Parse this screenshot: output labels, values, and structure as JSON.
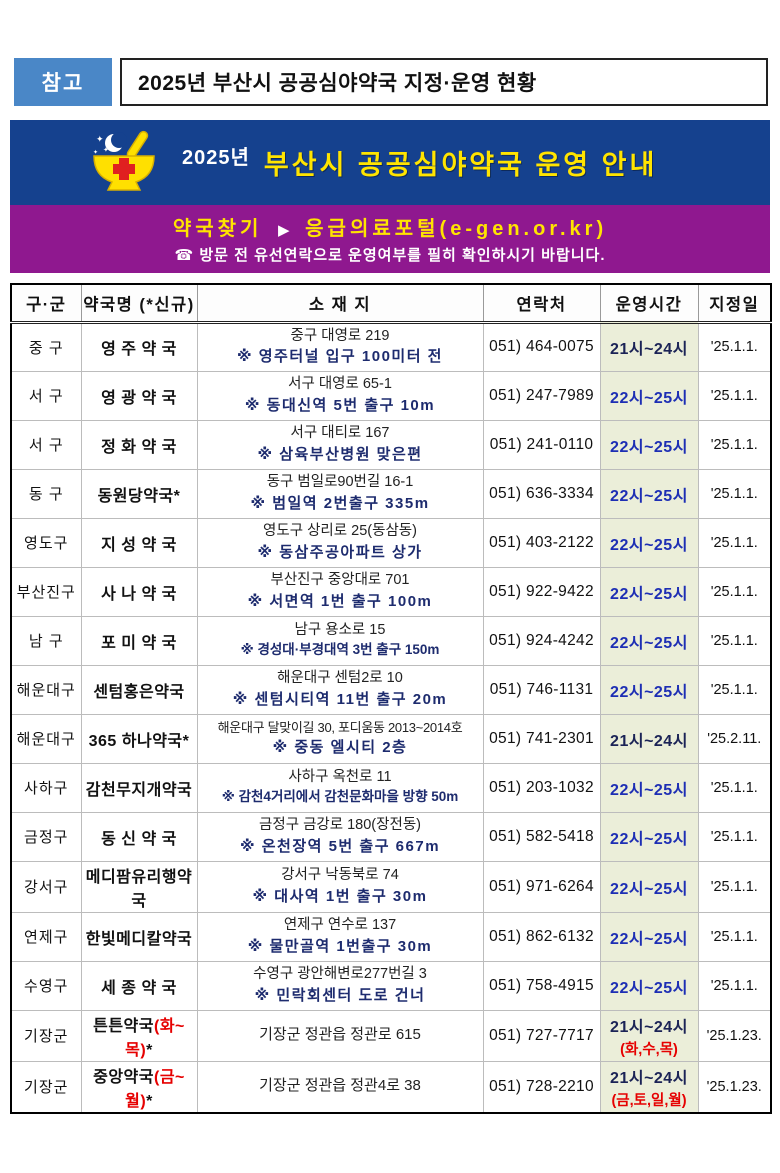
{
  "colors": {
    "badge_blue": "#4a87c7",
    "banner_blue": "#15418e",
    "banner_yellow": "#ffe400",
    "purple": "#8f188f",
    "hours_green": "#ebeed9",
    "time_blue": "#1d2eb4",
    "time_navy": "#1b2356",
    "accent_red": "#e60000",
    "note_navy": "#1d2b6e"
  },
  "page": {
    "ref_label": "참고",
    "title": "2025년 부산시 공공심야약국 지정·운영 현황"
  },
  "banner": {
    "icon": "pharmacy-mortar-icon",
    "year": "2025년",
    "title": "부산시 공공심야약국 운영 안내"
  },
  "finder": {
    "label": "약국찾기",
    "arrow": "▶",
    "portal": "응급의료포털(e-gen.or.kr)",
    "notice": "☎ 방문 전 유선연락으로 운영여부를 필히 확인하시기 바랍니다."
  },
  "table": {
    "headers": [
      "구·군",
      "약국명 (*신규)",
      "소 재 지",
      "연락처",
      "운영시간",
      "지정일"
    ],
    "rows": [
      {
        "district": "중 구",
        "name": "영 주 약 국",
        "addr": "중구 대영로 219",
        "addr_note": "※ 영주터널 입구 100미터 전",
        "phone": "051) 464-0075",
        "hours": "21시~24시",
        "hours_days": "",
        "date": "'25.1.1."
      },
      {
        "district": "서 구",
        "name": "영 광 약 국",
        "addr": "서구 대영로 65-1",
        "addr_note": "※ 동대신역 5번 출구 10m",
        "phone": "051) 247-7989",
        "hours": "22시~25시",
        "hours_days": "",
        "date": "'25.1.1."
      },
      {
        "district": "서 구",
        "name": "정 화 약 국",
        "addr": "서구 대티로 167",
        "addr_note": "※ 삼육부산병원 맞은편",
        "phone": "051) 241-0110",
        "hours": "22시~25시",
        "hours_days": "",
        "date": "'25.1.1."
      },
      {
        "district": "동 구",
        "name": "동원당약국*",
        "addr": "동구 범일로90번길 16-1",
        "addr_note": "※ 범일역 2번출구 335m",
        "phone": "051) 636-3334",
        "hours": "22시~25시",
        "hours_days": "",
        "date": "'25.1.1."
      },
      {
        "district": "영도구",
        "name": "지 성 약 국",
        "addr": "영도구 상리로 25(동삼동)",
        "addr_note": "※ 동삼주공아파트 상가",
        "phone": "051) 403-2122",
        "hours": "22시~25시",
        "hours_days": "",
        "date": "'25.1.1."
      },
      {
        "district": "부산진구",
        "name": "사 나 약 국",
        "addr": "부산진구 중앙대로 701",
        "addr_note": "※ 서면역 1번 출구 100m",
        "phone": "051) 922-9422",
        "hours": "22시~25시",
        "hours_days": "",
        "date": "'25.1.1."
      },
      {
        "district": "남 구",
        "name": "포 미 약 국",
        "addr": "남구 용소로 15",
        "addr_note": "※ 경성대·부경대역 3번 출구 150m",
        "phone": "051) 924-4242",
        "hours": "22시~25시",
        "hours_days": "",
        "date": "'25.1.1."
      },
      {
        "district": "해운대구",
        "name": "센텀홍은약국",
        "addr": "해운대구 센텀2로 10",
        "addr_note": "※ 센텀시티역 11번 출구 20m",
        "phone": "051) 746-1131",
        "hours": "22시~25시",
        "hours_days": "",
        "date": "'25.1.1."
      },
      {
        "district": "해운대구",
        "name": "365 하나약국*",
        "addr": "해운대구 달맞이길 30, 포디움동 2013~2014호",
        "addr_note": "※ 중동 엘시티 2층",
        "phone": "051) 741-2301",
        "hours": "21시~24시",
        "hours_days": "",
        "date": "'25.2.11."
      },
      {
        "district": "사하구",
        "name": "감천무지개약국",
        "addr": "사하구 옥천로 11",
        "addr_note": "※ 감천4거리에서 감천문화마을 방향 50m",
        "phone": "051) 203-1032",
        "hours": "22시~25시",
        "hours_days": "",
        "date": "'25.1.1."
      },
      {
        "district": "금정구",
        "name": "동 신 약 국",
        "addr": "금정구 금강로 180(장전동)",
        "addr_note": "※ 온천장역 5번 출구 667m",
        "phone": "051) 582-5418",
        "hours": "22시~25시",
        "hours_days": "",
        "date": "'25.1.1."
      },
      {
        "district": "강서구",
        "name": "메디팜유리행약국",
        "addr": "강서구 낙동북로 74",
        "addr_note": "※ 대사역 1번 출구 30m",
        "phone": "051) 971-6264",
        "hours": "22시~25시",
        "hours_days": "",
        "date": "'25.1.1."
      },
      {
        "district": "연제구",
        "name": "한빛메디칼약국",
        "addr": "연제구 연수로 137",
        "addr_note": "※ 물만골역 1번출구 30m",
        "phone": "051) 862-6132",
        "hours": "22시~25시",
        "hours_days": "",
        "date": "'25.1.1."
      },
      {
        "district": "수영구",
        "name": "세 종 약 국",
        "addr": "수영구 광안해변로277번길 3",
        "addr_note": "※ 민락회센터 도로 건너",
        "phone": "051) 758-4915",
        "hours": "22시~25시",
        "hours_days": "",
        "date": "'25.1.1."
      },
      {
        "district": "기장군",
        "name": "튼튼약국",
        "name_red": "(화~목)",
        "name_suffix": "*",
        "addr": "기장군 정관읍 정관로 615",
        "addr_note": "",
        "phone": "051) 727-7717",
        "hours": "21시~24시",
        "hours_days": "(화,수,목)",
        "date": "'25.1.23."
      },
      {
        "district": "기장군",
        "name": "중앙약국",
        "name_red": "(금~월)",
        "name_suffix": "*",
        "addr": "기장군 정관읍 정관4로 38",
        "addr_note": "",
        "phone": "051) 728-2210",
        "hours": "21시~24시",
        "hours_days": "(금,토,일,월)",
        "date": "'25.1.23."
      }
    ]
  }
}
